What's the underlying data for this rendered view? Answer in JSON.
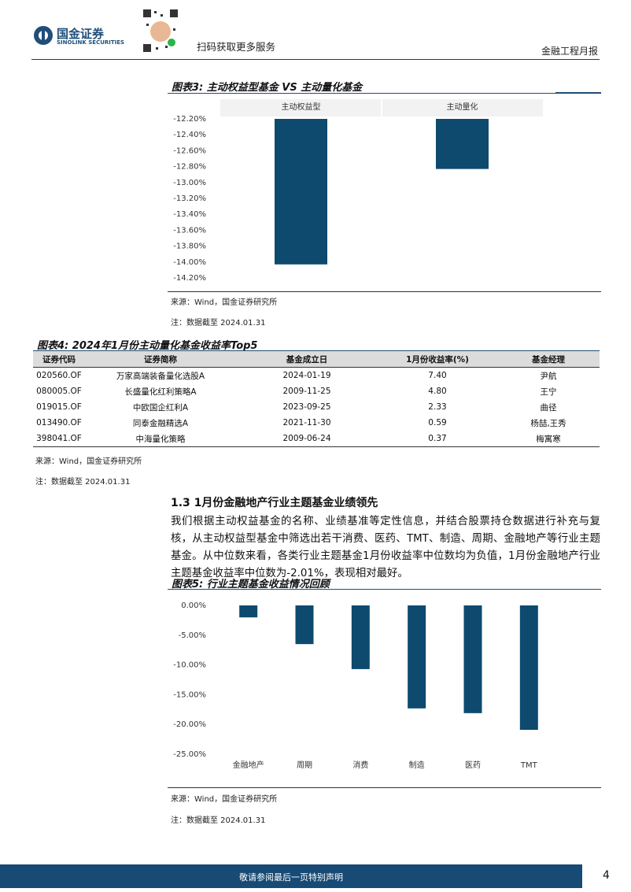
{
  "header": {
    "logo_name": "国金证券",
    "logo_name_en": "SINOLINK SECURITIES",
    "qr_caption": "扫码获取更多服务",
    "report_type": "金融工程月报"
  },
  "chart_data": [
    {
      "type": "bar",
      "title": "图表3: 主动权益型基金 VS 主动量化基金",
      "categories": [
        "主动权益型",
        "主动量化"
      ],
      "values": [
        -14.03,
        -12.83
      ],
      "color": "#0d4a6e",
      "ylim": [
        -14.2,
        -12.2
      ],
      "yticks": [
        {
          "value": -12.2,
          "label": "-12.20%"
        },
        {
          "value": -12.4,
          "label": "-12.40%"
        },
        {
          "value": -12.6,
          "label": "-12.60%"
        },
        {
          "value": -12.8,
          "label": "-12.80%"
        },
        {
          "value": -13.0,
          "label": "-13.00%"
        },
        {
          "value": -13.2,
          "label": "-13.20%"
        },
        {
          "value": -13.4,
          "label": "-13.40%"
        },
        {
          "value": -13.6,
          "label": "-13.60%"
        },
        {
          "value": -13.8,
          "label": "-13.80%"
        },
        {
          "value": -14.0,
          "label": "-14.00%"
        },
        {
          "value": -14.2,
          "label": "-14.20%"
        }
      ],
      "source": "来源：Wind，国金证券研究所",
      "note": "注：数据截至 2024.01.31"
    },
    {
      "type": "bar",
      "title": "图表5: 行业主题基金收益情况回顾",
      "categories": [
        "金融地产",
        "周期",
        "消费",
        "制造",
        "医药",
        "TMT"
      ],
      "values": [
        -2.01,
        -6.5,
        -10.7,
        -17.3,
        -18.1,
        -20.9
      ],
      "color": "#0d4a6e",
      "ylim": [
        -25,
        0
      ],
      "yticks": [
        {
          "value": 0,
          "label": "0.00%"
        },
        {
          "value": -5,
          "label": "-5.00%"
        },
        {
          "value": -10,
          "label": "-10.00%"
        },
        {
          "value": -15,
          "label": "-15.00%"
        },
        {
          "value": -20,
          "label": "-20.00%"
        },
        {
          "value": -25,
          "label": "-25.00%"
        }
      ],
      "source": "来源：Wind，国金证券研究所",
      "note": "注：数据截至 2024.01.31"
    }
  ],
  "table": {
    "title": "图表4: 2024年1月份主动量化基金收益率Top5",
    "columns": [
      "证券代码",
      "证券简称",
      "基金成立日",
      "1月份收益率(%)",
      "基金经理"
    ],
    "rows": [
      [
        "020560.OF",
        "万家高端装备量化选股A",
        "2024-01-19",
        "7.40",
        "尹航"
      ],
      [
        "080005.OF",
        "长盛量化红利策略A",
        "2009-11-25",
        "4.80",
        "王宁"
      ],
      [
        "019015.OF",
        "中欧国企红利A",
        "2023-09-25",
        "2.33",
        "曲径"
      ],
      [
        "013490.OF",
        "同泰金融精选A",
        "2021-11-30",
        "0.59",
        "杨喆,王秀"
      ],
      [
        "398041.OF",
        "中海量化策略",
        "2009-06-24",
        "0.37",
        "梅寓寒"
      ]
    ],
    "source": "来源：Wind，国金证券研究所",
    "note": "注：数据截至 2024.01.31"
  },
  "section": {
    "heading": "1.3 1月份金融地产行业主题基金业绩领先",
    "paragraph": "我们根据主动权益基金的名称、业绩基准等定性信息，并结合股票持仓数据进行补充与复核，从主动权益型基金中筛选出若干消费、医药、TMT、制造、周期、金融地产等行业主题基金。从中位数来看，各类行业主题基金1月份收益率中位数均为负值，1月份金融地产行业主题基金收益率中位数为-2.01%，表现相对最好。"
  },
  "footer": {
    "disclaimer": "敬请参阅最后一页特别声明",
    "page_number": "4"
  }
}
